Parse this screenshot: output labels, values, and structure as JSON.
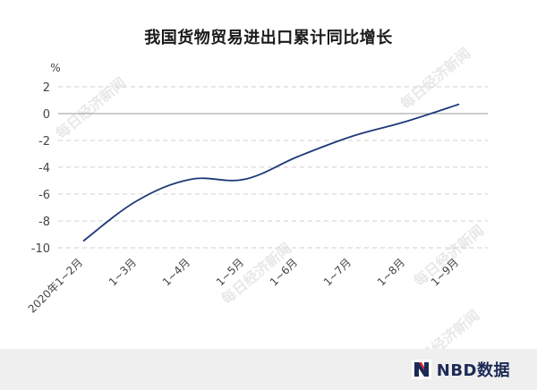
{
  "chart_data": {
    "type": "line",
    "title": "我国货物贸易进出口累计同比增长",
    "ylabel": "%",
    "xlabel": "",
    "ylim": [
      -10,
      2
    ],
    "yticks": [
      2,
      0,
      -2,
      -4,
      -6,
      -8,
      -10
    ],
    "grid": true,
    "categories": [
      "2020年1~2月",
      "1~3月",
      "1~4月",
      "1~5月",
      "1~6月",
      "1~7月",
      "1~8月",
      "1~9月"
    ],
    "series": [
      {
        "color": "#1f3a7a",
        "values": [
          -9.5,
          -6.5,
          -4.9,
          -4.9,
          -3.2,
          -1.7,
          -0.6,
          0.7
        ]
      }
    ]
  },
  "watermark": "每日经济新闻",
  "brand": {
    "name": "NBD数据"
  }
}
